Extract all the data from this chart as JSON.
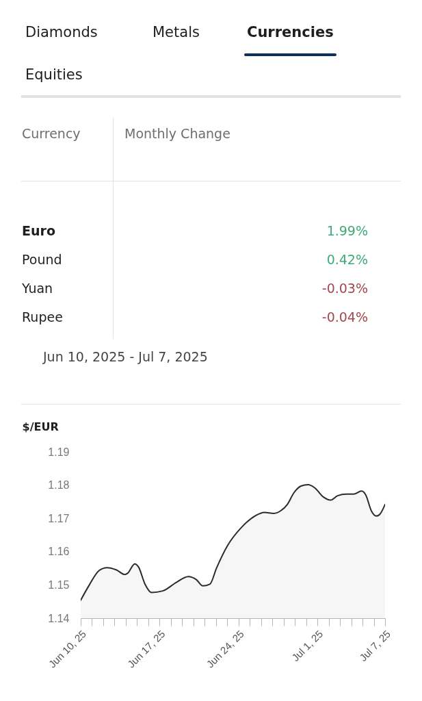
{
  "chart_data": [
    {
      "type": "other",
      "annotations": [
        "Diamonds",
        "Metals",
        "Currencies",
        "Equities"
      ],
      "xlabel": "Currency",
      "ylabel": "Monthly Change",
      "categories": [
        "Euro",
        "Pound",
        "Yuan",
        "Rupee"
      ],
      "value_labels": [
        "1.99%",
        "0.42%",
        "-0.03%",
        "-0.04%"
      ],
      "colors": [
        "#3eaa7a",
        "#3eaa7a",
        "#a5474f",
        "#a5474f"
      ],
      "subtitle": "Jun 10, 2025 - Jul 7, 2025"
    },
    {
      "type": "area",
      "ylabel": "$/EUR",
      "x": [
        "2025-06-10",
        "2025-06-10T18:00",
        "2025-06-11T15:00",
        "2025-06-12T08:00",
        "2025-06-13T04:00",
        "2025-06-13T22:00",
        "2025-06-14T04:00",
        "2025-06-14T19:00",
        "2025-06-15T03:00",
        "2025-06-15T17:00",
        "2025-06-16T07:00",
        "2025-06-17T07:00",
        "2025-06-18T10:00",
        "2025-06-19T13:00",
        "2025-06-20T06:00",
        "2025-06-20T20:00",
        "2025-06-21T11:00",
        "2025-06-22T01:00",
        "2025-06-23T01:00",
        "2025-06-24T07:00",
        "2025-06-25T12:00",
        "2025-06-26T07:00",
        "2025-06-27T03:00",
        "2025-06-27T17:00",
        "2025-06-28T08:00",
        "2025-06-28T22:00",
        "2025-06-29T13:00",
        "2025-06-30T04:00",
        "2025-06-30T18:00",
        "2025-07-01T13:00",
        "2025-07-02T04:00",
        "2025-07-02T19:00",
        "2025-07-03T14:00",
        "2025-07-04T05:00",
        "2025-07-04T22:00",
        "2025-07-05T07:00",
        "2025-07-05T19:00",
        "2025-07-06T05:00",
        "2025-07-06T12:00",
        "2025-07-07"
      ],
      "series": [
        {
          "color": "#2b2b2b",
          "values": [
            1.1454,
            1.1499,
            1.1543,
            1.1552,
            1.1545,
            1.1531,
            1.1535,
            1.1563,
            1.1554,
            1.1502,
            1.1477,
            1.1482,
            1.1506,
            1.1525,
            1.1516,
            1.1497,
            1.1502,
            1.155,
            1.1619,
            1.1674,
            1.1708,
            1.1718,
            1.1715,
            1.1722,
            1.1742,
            1.1777,
            1.1797,
            1.1801,
            1.1792,
            1.1764,
            1.1755,
            1.1768,
            1.1773,
            1.1773,
            1.1782,
            1.177,
            1.1722,
            1.1707,
            1.1711,
            1.1742
          ]
        }
      ],
      "xlim": [
        "2025-06-10",
        "2025-07-07"
      ],
      "xticks": [
        {
          "value": "2025-06-10",
          "label": "Jun 10, 25"
        },
        {
          "value": "2025-06-11",
          "label": null
        },
        {
          "value": "2025-06-12",
          "label": null
        },
        {
          "value": "2025-06-13",
          "label": null
        },
        {
          "value": "2025-06-14",
          "label": null
        },
        {
          "value": "2025-06-15",
          "label": null
        },
        {
          "value": "2025-06-16",
          "label": null
        },
        {
          "value": "2025-06-17",
          "label": "Jun 17, 25"
        },
        {
          "value": "2025-06-18",
          "label": null
        },
        {
          "value": "2025-06-19",
          "label": null
        },
        {
          "value": "2025-06-20",
          "label": null
        },
        {
          "value": "2025-06-21",
          "label": null
        },
        {
          "value": "2025-06-22",
          "label": null
        },
        {
          "value": "2025-06-23",
          "label": null
        },
        {
          "value": "2025-06-24",
          "label": "Jun 24, 25"
        },
        {
          "value": "2025-06-25",
          "label": null
        },
        {
          "value": "2025-06-26",
          "label": null
        },
        {
          "value": "2025-06-27",
          "label": null
        },
        {
          "value": "2025-06-28",
          "label": null
        },
        {
          "value": "2025-06-29",
          "label": null
        },
        {
          "value": "2025-06-30",
          "label": null
        },
        {
          "value": "2025-07-01",
          "label": "Jul 1, 25"
        },
        {
          "value": "2025-07-02",
          "label": null
        },
        {
          "value": "2025-07-03",
          "label": null
        },
        {
          "value": "2025-07-04",
          "label": null
        },
        {
          "value": "2025-07-05",
          "label": null
        },
        {
          "value": "2025-07-06",
          "label": null
        },
        {
          "value": "2025-07-07",
          "label": "Jul 7, 25"
        }
      ],
      "ylim": [
        1.14,
        1.19
      ],
      "yticks": [
        1.14,
        1.15,
        1.16,
        1.17,
        1.18,
        1.19
      ]
    }
  ]
}
